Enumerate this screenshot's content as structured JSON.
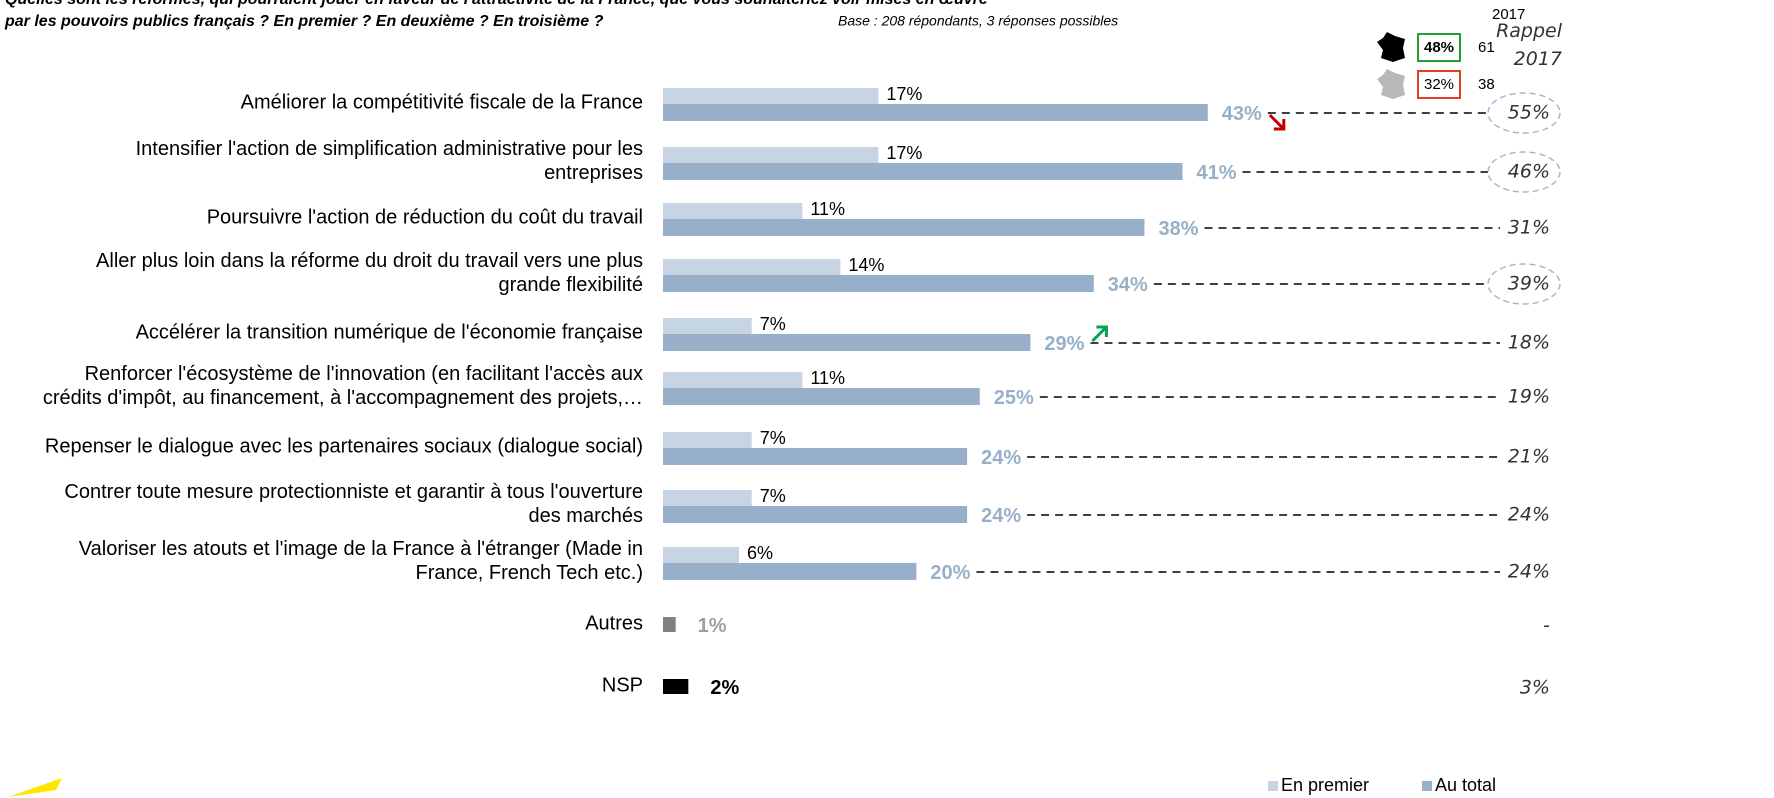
{
  "chart_data": {
    "type": "hbar",
    "title": "Quelles sont les réformes, qui pourraient jouer en faveur de l'attractivité de la France, que vous souhaiteriez voir mises en œuvre",
    "subtitle": "par les pouvoirs publics français ?  En premier ? En deuxième ? En troisième ?",
    "note": "Base : 208 répondants, 3 réponses possibles",
    "categories": [
      "Améliorer la compétitivité fiscale de la France",
      "Intensifier l'action de simplification administrative pour les\nentreprises",
      "Poursuivre l'action de réduction du coût du travail",
      "Aller plus loin dans la réforme du droit du travail vers une plus\ngrande flexibilité",
      "Accélérer la transition numérique de l'économie française",
      "Renforcer l'écosystème de l'innovation (en facilitant l'accès aux\ncrédits d'impôt, au financement, à l'accompagnement des projets,…",
      "Repenser le dialogue avec les partenaires sociaux (dialogue social)",
      "Contrer toute mesure protectionniste et garantir à tous l'ouverture\ndes marchés",
      "Valoriser les atouts et l'image de la France à l'étranger (Made in\nFrance, French Tech etc.)",
      "Autres",
      "NSP"
    ],
    "series": [
      {
        "name": "En premier",
        "color": "#c6d4e3",
        "values": [
          17,
          17,
          11,
          14,
          7,
          11,
          7,
          7,
          6,
          null,
          null
        ],
        "value_labels": [
          "17%",
          "17%",
          "11%",
          "14%",
          "7%",
          "11%",
          "7%",
          "7%",
          "6%",
          null,
          null
        ]
      },
      {
        "name": "Au total",
        "color": "#98afca",
        "point_colors": [
          "#98afca",
          "#98afca",
          "#98afca",
          "#98afca",
          "#98afca",
          "#98afca",
          "#98afca",
          "#98afca",
          "#98afca",
          "#808080",
          "#000000"
        ],
        "label_colors": [
          "#98afca",
          "#98afca",
          "#98afca",
          "#98afca",
          "#98afca",
          "#98afca",
          "#98afca",
          "#98afca",
          "#98afca",
          "#a0a0a0",
          "#000000"
        ],
        "values": [
          43,
          41,
          38,
          34,
          29,
          25,
          24,
          24,
          20,
          1,
          2
        ],
        "value_labels": [
          "43%",
          "41%",
          "38%",
          "34%",
          "29%",
          "25%",
          "24%",
          "24%",
          "20%",
          "1%",
          "2%"
        ]
      }
    ],
    "recall": {
      "title": "Rappel\n2017",
      "values": [
        55,
        46,
        31,
        39,
        18,
        19,
        21,
        24,
        24,
        null,
        3
      ],
      "value_labels": [
        "55%",
        "46%",
        "31%",
        "39%",
        "18%",
        "19%",
        "21%",
        "24%",
        "24%",
        "-",
        "3%"
      ],
      "highlight": [
        0,
        1,
        3
      ]
    },
    "arrows": [
      {
        "index": 0,
        "direction": "down",
        "color": "#c00000"
      },
      {
        "index": 4,
        "direction": "up",
        "color": "#00a550"
      }
    ],
    "inset": {
      "header": "2017",
      "rows": [
        {
          "value": 48,
          "label": "48%",
          "ref": 61,
          "box_color": "#22a038",
          "icon_color": "#000000",
          "bold": true
        },
        {
          "value": 32,
          "label": "32%",
          "ref": 38,
          "box_color": "#e0402a",
          "icon_color": "#b8b8b8",
          "bold": false
        }
      ]
    },
    "xlim": [
      0,
      50
    ],
    "legend": "bottom-right"
  }
}
